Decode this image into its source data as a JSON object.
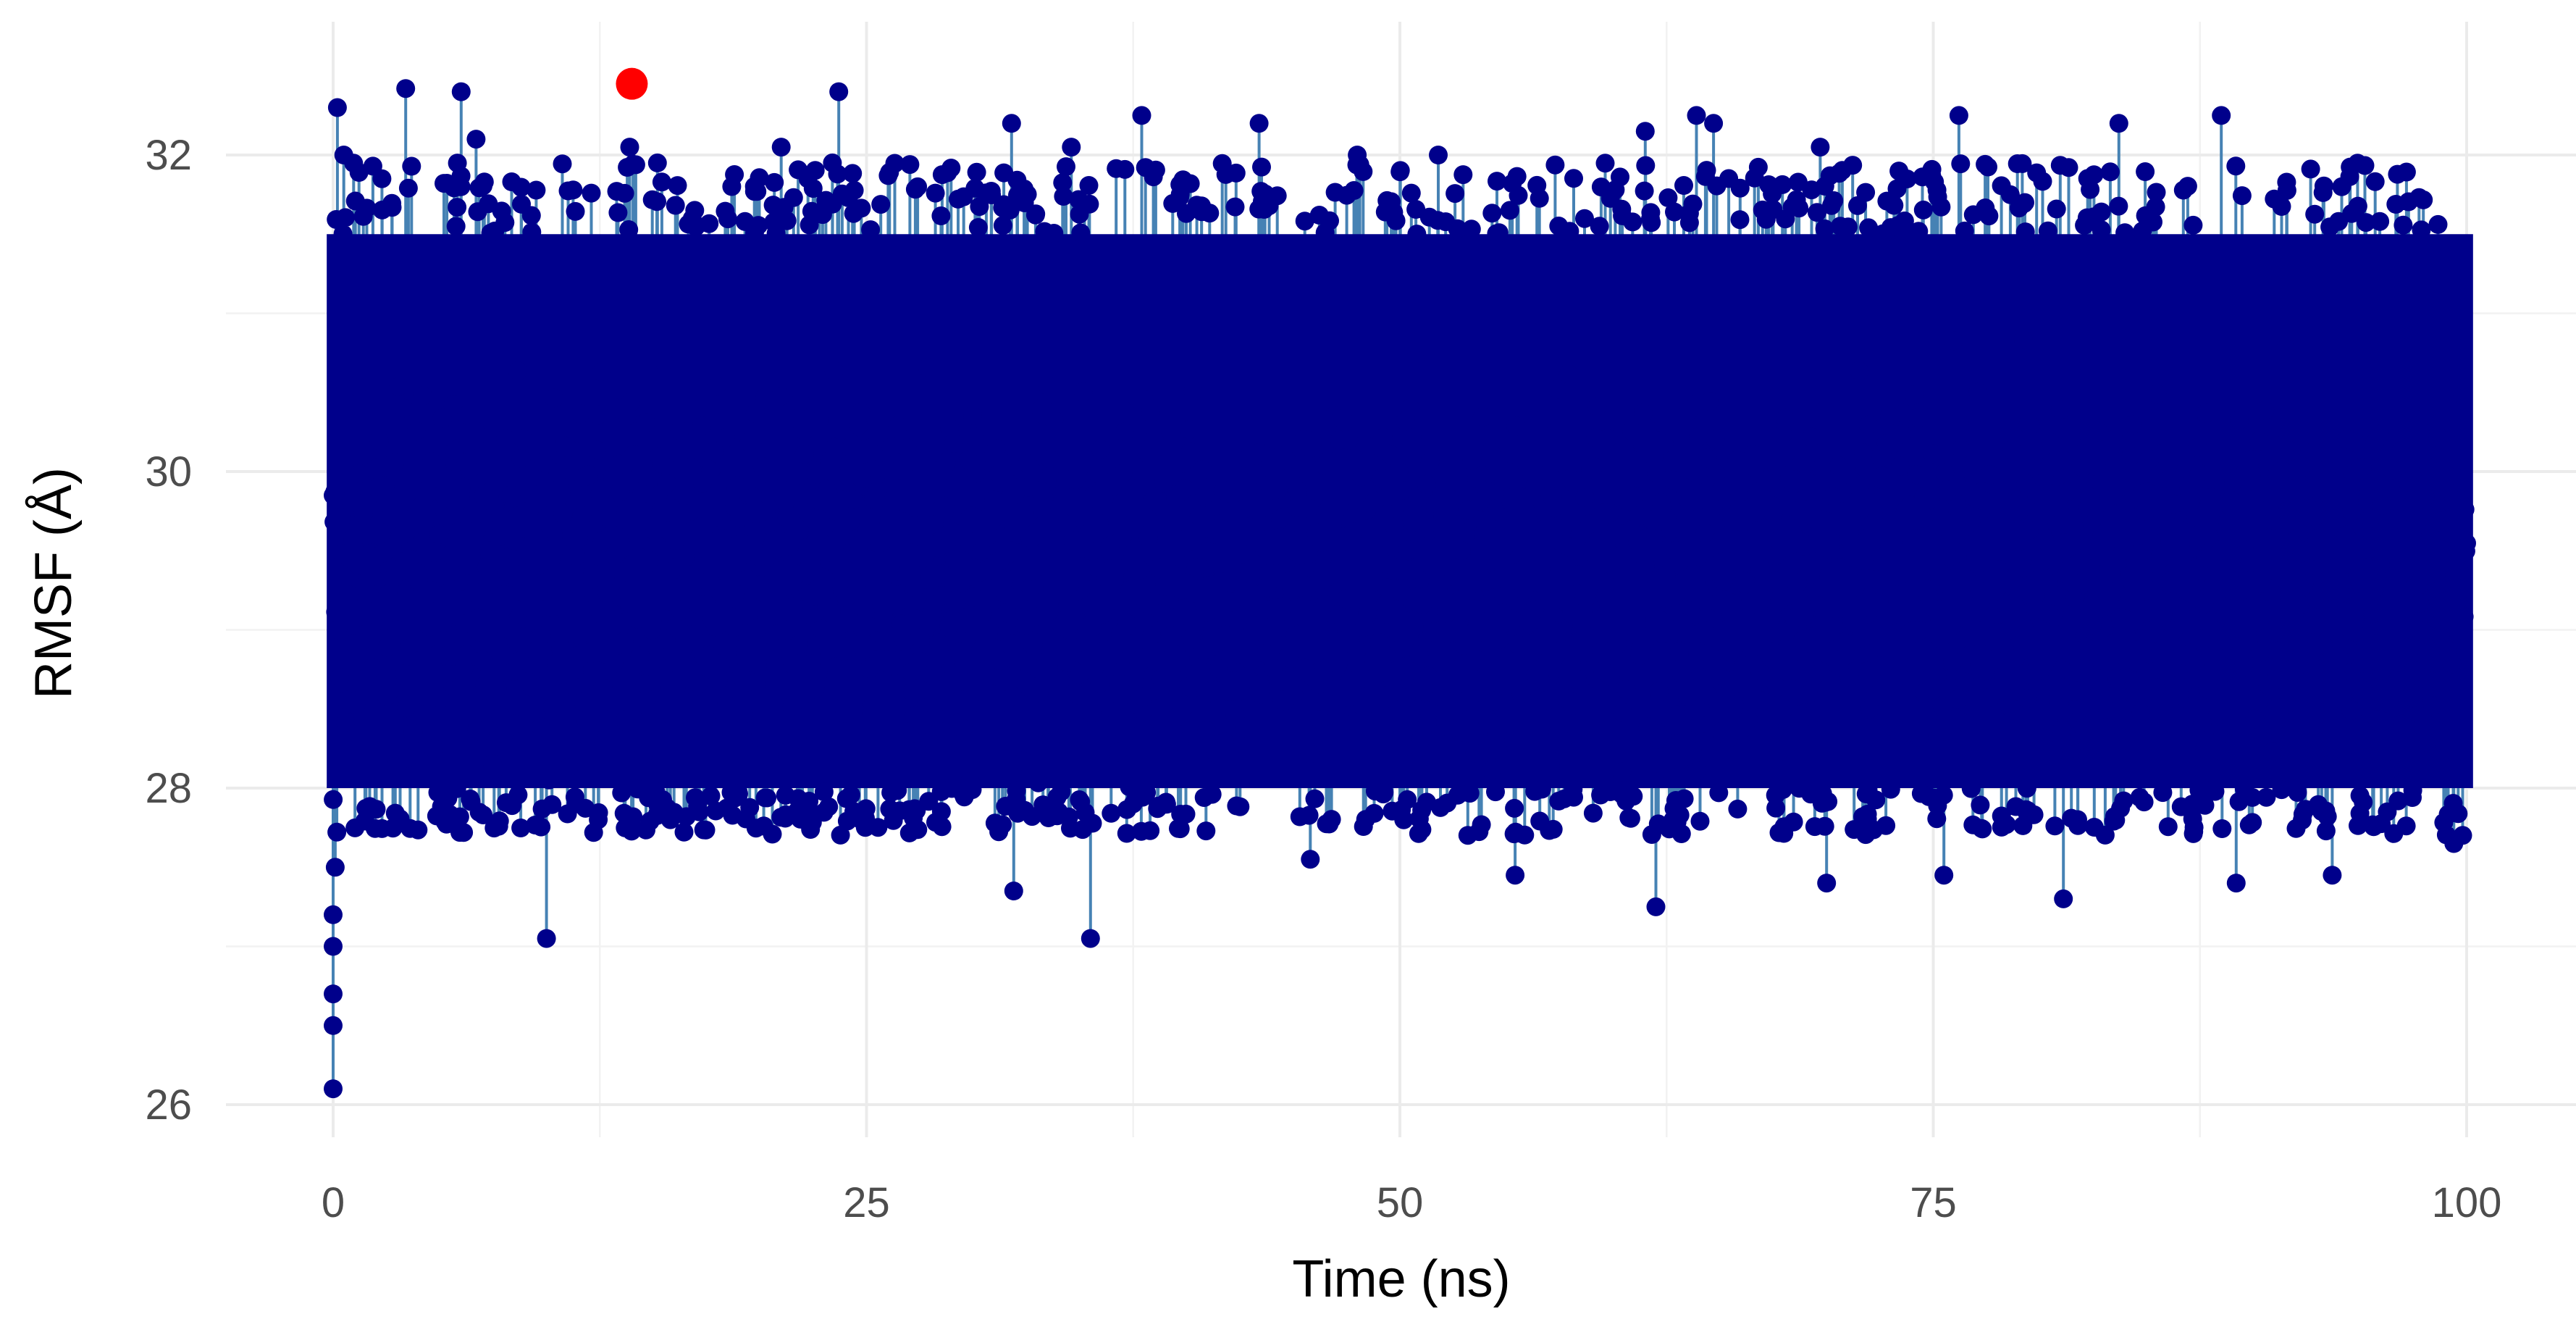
{
  "chart_data": {
    "type": "scatter",
    "style": "lollipop",
    "xlabel": "Time (ns)",
    "ylabel": "RMSF (Å)",
    "xlim": [
      -5,
      105
    ],
    "ylim": [
      25.85,
      32.65
    ],
    "x_ticks": [
      0,
      25,
      50,
      75,
      100
    ],
    "y_ticks": [
      26,
      28,
      30,
      32
    ],
    "grid": true,
    "legend": "none",
    "n_points": 10000,
    "baseline": 29.3,
    "typical_range": [
      28.0,
      31.5
    ],
    "point_color": "#00008b",
    "stem_color": "#4682b4",
    "highlight_color": "#ff0000",
    "highlight_point": {
      "x": 14,
      "y": 32.45
    },
    "extreme_points": [
      {
        "x": 0,
        "y": 26.1
      },
      {
        "x": 0,
        "y": 26.5
      },
      {
        "x": 0,
        "y": 26.7
      },
      {
        "x": 0,
        "y": 27.0
      },
      {
        "x": 0,
        "y": 27.2
      },
      {
        "x": 0.1,
        "y": 27.5
      },
      {
        "x": 0.2,
        "y": 32.3
      },
      {
        "x": 0.5,
        "y": 32.0
      },
      {
        "x": 3.4,
        "y": 32.42
      },
      {
        "x": 6,
        "y": 32.4
      },
      {
        "x": 6.7,
        "y": 32.1
      },
      {
        "x": 10,
        "y": 27.05
      },
      {
        "x": 13.9,
        "y": 32.05
      },
      {
        "x": 15.2,
        "y": 31.95
      },
      {
        "x": 21,
        "y": 32.05
      },
      {
        "x": 23.7,
        "y": 32.4
      },
      {
        "x": 23.4,
        "y": 31.95
      },
      {
        "x": 31.9,
        "y": 27.35
      },
      {
        "x": 31.8,
        "y": 32.2
      },
      {
        "x": 34.6,
        "y": 32.05
      },
      {
        "x": 35.5,
        "y": 27.05
      },
      {
        "x": 37.9,
        "y": 32.25
      },
      {
        "x": 43.4,
        "y": 32.2
      },
      {
        "x": 45.8,
        "y": 27.55
      },
      {
        "x": 48,
        "y": 32.0
      },
      {
        "x": 51.8,
        "y": 32.0
      },
      {
        "x": 55.4,
        "y": 27.45
      },
      {
        "x": 61.5,
        "y": 32.15
      },
      {
        "x": 62,
        "y": 27.25
      },
      {
        "x": 63.9,
        "y": 32.25
      },
      {
        "x": 64.7,
        "y": 32.2
      },
      {
        "x": 69.7,
        "y": 32.05
      },
      {
        "x": 70,
        "y": 27.4
      },
      {
        "x": 76.2,
        "y": 32.25
      },
      {
        "x": 75.5,
        "y": 27.45
      },
      {
        "x": 81.1,
        "y": 27.3
      },
      {
        "x": 83.7,
        "y": 32.2
      },
      {
        "x": 88.5,
        "y": 32.25
      },
      {
        "x": 89.2,
        "y": 27.4
      },
      {
        "x": 93.7,
        "y": 27.45
      },
      {
        "x": 99.4,
        "y": 27.65
      }
    ]
  }
}
